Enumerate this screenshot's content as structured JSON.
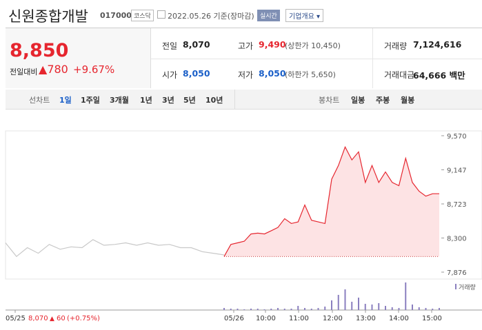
{
  "header": {
    "title": "신원종합개발",
    "code": "017000",
    "market": "코스닥",
    "date": "2022.05.26 기준(장마감)",
    "realtime": "실시간",
    "company_info": "기업개요"
  },
  "quote": {
    "price": "8,850",
    "change_label": "전일대비",
    "change": "780",
    "change_pct": "+9.67%"
  },
  "stats": [
    {
      "label": "전일",
      "value": "8,070"
    },
    {
      "label": "고가",
      "value": "9,490",
      "sub": "(상한가 10,450)"
    },
    {
      "label": "거래량",
      "value": "7,124,616"
    },
    {
      "label": "시가",
      "value": "8,050"
    },
    {
      "label": "저가",
      "value": "8,050",
      "sub": "(하한가 5,650)"
    },
    {
      "label": "거래대금",
      "value": "64,666 백만"
    }
  ],
  "tabs": {
    "line_label": "선차트",
    "line_items": [
      "1일",
      "1주일",
      "3개월",
      "1년",
      "3년",
      "5년",
      "10년"
    ],
    "candle_label": "봉차트",
    "candle_items": [
      "일봉",
      "주봉",
      "월봉"
    ]
  },
  "chart_data": {
    "type": "line",
    "ylim": [
      7876,
      9570
    ],
    "yticks": [
      {
        "value": 7876,
        "label": "7,876"
      },
      {
        "value": 8300,
        "label": "8,300"
      },
      {
        "value": 8723,
        "label": "8,723"
      },
      {
        "value": 9147,
        "label": "9,147"
      },
      {
        "value": 9570,
        "label": "9,570"
      }
    ],
    "prev_close": 8070,
    "xtick_labels": [
      "05/25",
      "05/26",
      "10:00",
      "11:00",
      "12:00",
      "13:00",
      "14:00",
      "15:00"
    ],
    "series": [
      {
        "color": "#c8c8c8",
        "values": [
          8240,
          8070,
          8180,
          8110,
          8220,
          8160,
          8190,
          8180,
          8280,
          8210,
          8220,
          8240,
          8210,
          8240,
          8210,
          8220,
          8180,
          8180,
          8130,
          8110,
          8090
        ]
      },
      {
        "color": "#e6262f",
        "values": [
          8070,
          8220,
          8240,
          8260,
          8350,
          8360,
          8350,
          8390,
          8430,
          8540,
          8480,
          8500,
          8710,
          8520,
          8500,
          8480,
          9030,
          9200,
          9430,
          9270,
          9370,
          8990,
          9200,
          8990,
          9120,
          8990,
          8950,
          9290,
          8990,
          8880,
          8820,
          8850,
          8850
        ]
      }
    ],
    "volume_label": "거래량",
    "volume": [
      3,
      2,
      2,
      1,
      2,
      2,
      1,
      2,
      3,
      2,
      2,
      6,
      3,
      2,
      3,
      5,
      14,
      22,
      30,
      12,
      18,
      9,
      8,
      10,
      6,
      4,
      3,
      40,
      8,
      4,
      3,
      2,
      3
    ],
    "footer": {
      "date": "05/25",
      "close": "8,070",
      "change": "60",
      "change_pct": "(+0.75%)"
    }
  }
}
